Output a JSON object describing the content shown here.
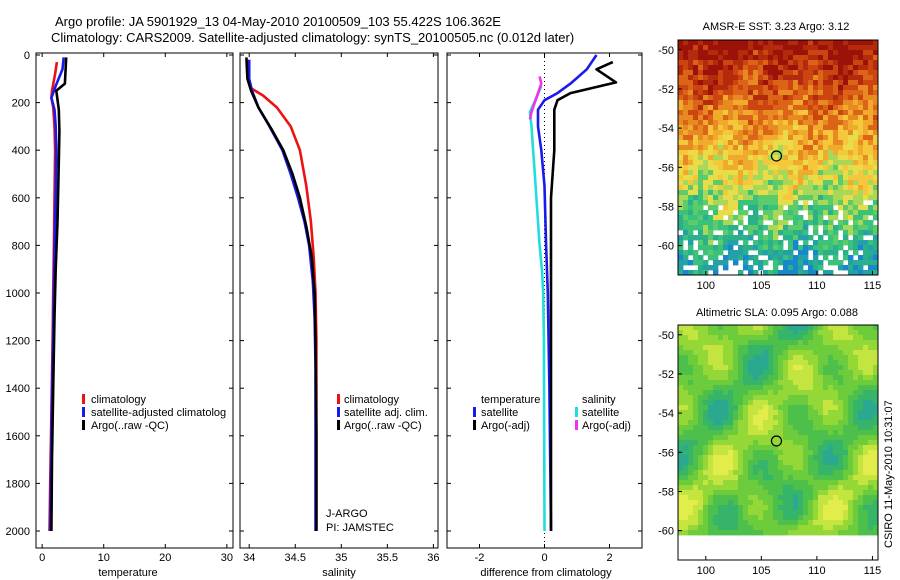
{
  "title": {
    "line1": "Argo profile: JA 5901929_13 04-May-2010 20100509_103 55.422S 106.362E",
    "line2": "Climatology: CARS2009. Satellite-adjusted climatology: synTS_20100505.nc (0.012d later)"
  },
  "colors": {
    "clim": "#ee1111",
    "sat": "#1a1aee",
    "argo": "#000000",
    "cyan": "#22dddd",
    "magenta": "#ee33ee"
  },
  "chart_data": [
    {
      "type": "line",
      "xlabel": "temperature",
      "ylabel": "",
      "xlim": [
        -1,
        31
      ],
      "ylim": [
        0,
        2050
      ],
      "y_reversed": true,
      "xticks": [
        0,
        10,
        20,
        30
      ],
      "yticks": [
        0,
        200,
        400,
        600,
        800,
        1000,
        1200,
        1400,
        1600,
        1800,
        2000
      ],
      "legend": [
        "climatology",
        "satellite-adjusted climatolog",
        "Argo(..raw -QC)"
      ],
      "series": [
        {
          "name": "climatology",
          "color": "clim",
          "points": [
            [
              2.4,
              30
            ],
            [
              2.1,
              80
            ],
            [
              1.6,
              150
            ],
            [
              1.5,
              180
            ],
            [
              1.8,
              220
            ],
            [
              2.0,
              300
            ],
            [
              2.1,
              400
            ],
            [
              2.0,
              600
            ],
            [
              1.9,
              800
            ],
            [
              1.8,
              1000
            ],
            [
              1.7,
              1200
            ],
            [
              1.5,
              1500
            ],
            [
              1.3,
              1800
            ],
            [
              1.2,
              2000
            ]
          ]
        },
        {
          "name": "satellite-adjusted",
          "color": "sat",
          "points": [
            [
              3.5,
              10
            ],
            [
              3.3,
              60
            ],
            [
              2.2,
              130
            ],
            [
              1.5,
              180
            ],
            [
              2.0,
              230
            ],
            [
              2.2,
              300
            ],
            [
              2.3,
              400
            ],
            [
              2.2,
              600
            ],
            [
              2.0,
              800
            ],
            [
              1.9,
              1000
            ],
            [
              1.7,
              1300
            ],
            [
              1.5,
              1600
            ],
            [
              1.3,
              2000
            ]
          ]
        },
        {
          "name": "argo",
          "color": "argo",
          "points": [
            [
              3.9,
              10
            ],
            [
              3.7,
              120
            ],
            [
              2.3,
              150
            ],
            [
              2.7,
              230
            ],
            [
              2.8,
              320
            ],
            [
              2.7,
              450
            ],
            [
              2.5,
              700
            ],
            [
              2.2,
              900
            ],
            [
              2.0,
              1100
            ],
            [
              1.8,
              1400
            ],
            [
              1.6,
              1700
            ],
            [
              1.5,
              2000
            ]
          ]
        }
      ]
    },
    {
      "type": "line",
      "xlabel": "salinity",
      "ylabel": "",
      "xlim": [
        33.9,
        36.05
      ],
      "ylim": [
        0,
        2050
      ],
      "y_reversed": true,
      "xticks": [
        34,
        34.5,
        35,
        35.5,
        36
      ],
      "yticks": [
        0,
        200,
        400,
        600,
        800,
        1000,
        1200,
        1400,
        1600,
        1800,
        2000
      ],
      "legend": [
        "climatology",
        "satellite adj. clim.",
        "Argo(..raw -QC)"
      ],
      "annotations": [
        "J-ARGO",
        "PI: JAMSTEC"
      ],
      "series": [
        {
          "name": "climatology",
          "color": "clim",
          "points": [
            [
              33.98,
              20
            ],
            [
              33.99,
              100
            ],
            [
              34.02,
              140
            ],
            [
              34.15,
              170
            ],
            [
              34.3,
              220
            ],
            [
              34.45,
              300
            ],
            [
              34.55,
              400
            ],
            [
              34.62,
              550
            ],
            [
              34.67,
              700
            ],
            [
              34.7,
              850
            ],
            [
              34.72,
              1000
            ],
            [
              34.73,
              1200
            ],
            [
              34.73,
              1600
            ],
            [
              34.73,
              2000
            ]
          ]
        },
        {
          "name": "satellite-adjusted",
          "color": "sat",
          "points": [
            [
              34.0,
              20
            ],
            [
              34.0,
              100
            ],
            [
              34.03,
              150
            ],
            [
              34.1,
              220
            ],
            [
              34.22,
              300
            ],
            [
              34.36,
              400
            ],
            [
              34.45,
              500
            ],
            [
              34.53,
              600
            ],
            [
              34.6,
              700
            ],
            [
              34.65,
              800
            ],
            [
              34.69,
              950
            ],
            [
              34.71,
              1100
            ],
            [
              34.72,
              1300
            ],
            [
              34.72,
              1600
            ],
            [
              34.72,
              2000
            ]
          ]
        },
        {
          "name": "argo",
          "color": "argo",
          "points": [
            [
              33.97,
              10
            ],
            [
              33.98,
              100
            ],
            [
              34.02,
              150
            ],
            [
              34.1,
              220
            ],
            [
              34.24,
              310
            ],
            [
              34.37,
              400
            ],
            [
              34.47,
              500
            ],
            [
              34.55,
              600
            ],
            [
              34.62,
              720
            ],
            [
              34.68,
              850
            ],
            [
              34.71,
              1000
            ],
            [
              34.72,
              1200
            ],
            [
              34.73,
              1600
            ],
            [
              34.73,
              2000
            ]
          ]
        }
      ]
    },
    {
      "type": "line",
      "xlabel": "difference from climatology",
      "ylabel": "",
      "xlim": [
        -3.0,
        3.0
      ],
      "ylim": [
        0,
        2050
      ],
      "y_reversed": true,
      "xticks": [
        -2,
        0,
        2
      ],
      "yticks": [
        0,
        200,
        400,
        600,
        800,
        1000,
        1200,
        1400,
        1600,
        1800,
        2000
      ],
      "legend_headers": [
        "temperature",
        "salinity"
      ],
      "legend_left": [
        "satellite",
        "Argo(-adj)"
      ],
      "legend_right": [
        "satellite",
        "Argo(-adj)"
      ],
      "series": [
        {
          "name": "temp satellite",
          "color": "sat",
          "points": [
            [
              1.6,
              0
            ],
            [
              1.3,
              60
            ],
            [
              0.8,
              120
            ],
            [
              0.4,
              160
            ],
            [
              0.0,
              190
            ],
            [
              -0.2,
              230
            ],
            [
              -0.2,
              300
            ],
            [
              -0.1,
              400
            ],
            [
              0.0,
              550
            ],
            [
              0.05,
              800
            ],
            [
              0.1,
              1000
            ],
            [
              0.15,
              1400
            ],
            [
              0.2,
              2000
            ]
          ]
        },
        {
          "name": "temp argo",
          "color": "argo",
          "points": [
            [
              2.1,
              30
            ],
            [
              1.6,
              60
            ],
            [
              2.2,
              115
            ],
            [
              0.8,
              160
            ],
            [
              0.4,
              190
            ],
            [
              0.3,
              230
            ],
            [
              0.3,
              300
            ],
            [
              0.3,
              400
            ],
            [
              0.2,
              600
            ],
            [
              0.2,
              800
            ],
            [
              0.2,
              1000
            ],
            [
              0.2,
              1400
            ],
            [
              0.2,
              2000
            ]
          ]
        },
        {
          "name": "sal satellite",
          "color": "cyan",
          "points": [
            [
              -0.1,
              130
            ],
            [
              -0.25,
              180
            ],
            [
              -0.45,
              240
            ],
            [
              -0.4,
              300
            ],
            [
              -0.35,
              400
            ],
            [
              -0.3,
              500
            ],
            [
              -0.25,
              600
            ],
            [
              -0.2,
              700
            ],
            [
              -0.15,
              800
            ],
            [
              -0.08,
              900
            ],
            [
              -0.04,
              1000
            ],
            [
              -0.02,
              1200
            ],
            [
              -0.01,
              1600
            ],
            [
              0.0,
              2000
            ]
          ]
        },
        {
          "name": "sal argo",
          "color": "magenta",
          "points": [
            [
              -0.15,
              90
            ],
            [
              -0.1,
              120
            ],
            [
              -0.4,
              240
            ],
            [
              -0.45,
              270
            ]
          ]
        }
      ]
    }
  ],
  "maps": {
    "sst": {
      "title": "AMSR-E SST: 3.23 Argo: 3.12",
      "xticks": [
        "100",
        "105",
        "110",
        "115"
      ],
      "yticks": [
        "-50",
        "-52",
        "-54",
        "-56",
        "-58",
        "-60"
      ]
    },
    "sla": {
      "title": "Altimetric SLA: 0.095 Argo: 0.088",
      "xticks": [
        "100",
        "105",
        "110",
        "115"
      ],
      "yticks": [
        "-50",
        "-52",
        "-54",
        "-56",
        "-58",
        "-60"
      ]
    },
    "float_lon": 106.362,
    "float_lat": -55.422
  },
  "credit": "CSIRO 11-May-2010 10:31:07"
}
